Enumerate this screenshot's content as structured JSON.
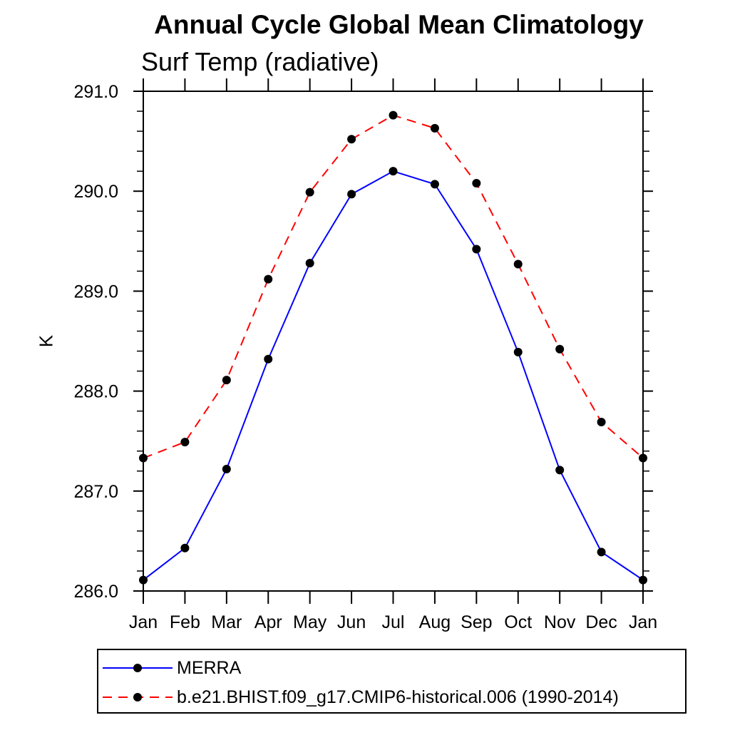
{
  "chart_data": {
    "type": "line",
    "title": "Annual Cycle Global Mean Climatology",
    "subtitle": "Surf Temp (radiative)",
    "xlabel": "",
    "ylabel": "K",
    "x_categories": [
      "Jan",
      "Feb",
      "Mar",
      "Apr",
      "May",
      "Jun",
      "Jul",
      "Aug",
      "Sep",
      "Oct",
      "Nov",
      "Dec",
      "Jan"
    ],
    "ylim": [
      286.0,
      291.0
    ],
    "ytick_step": 1.0,
    "ytick_minor_step": 0.2,
    "ytick_labels": [
      "286.0",
      "287.0",
      "288.0",
      "289.0",
      "290.0",
      "291.0"
    ],
    "grid": false,
    "frame": "box-with-outward-ticks",
    "legend_position": "bottom-left-box",
    "series": [
      {
        "name": "MERRA",
        "line_color": "#0000ff",
        "line_style": "solid",
        "marker": "filled-circle",
        "marker_color": "#000000",
        "values": [
          286.11,
          286.43,
          287.22,
          288.32,
          289.28,
          289.97,
          290.2,
          290.07,
          289.42,
          288.39,
          287.21,
          286.39,
          286.11
        ]
      },
      {
        "name": "b.e21.BHIST.f09_g17.CMIP6-historical.006 (1990-2014)",
        "line_color": "#ff0000",
        "line_style": "dashed",
        "marker": "filled-circle",
        "marker_color": "#000000",
        "values": [
          287.33,
          287.49,
          288.11,
          289.12,
          289.99,
          290.52,
          290.76,
          290.63,
          290.08,
          289.27,
          288.42,
          287.69,
          287.33
        ]
      }
    ]
  },
  "colors": {
    "background": "#ffffff",
    "axis": "#000000",
    "text": "#000000",
    "series_merra": "#0000ff",
    "series_model": "#ff0000",
    "marker": "#000000"
  }
}
